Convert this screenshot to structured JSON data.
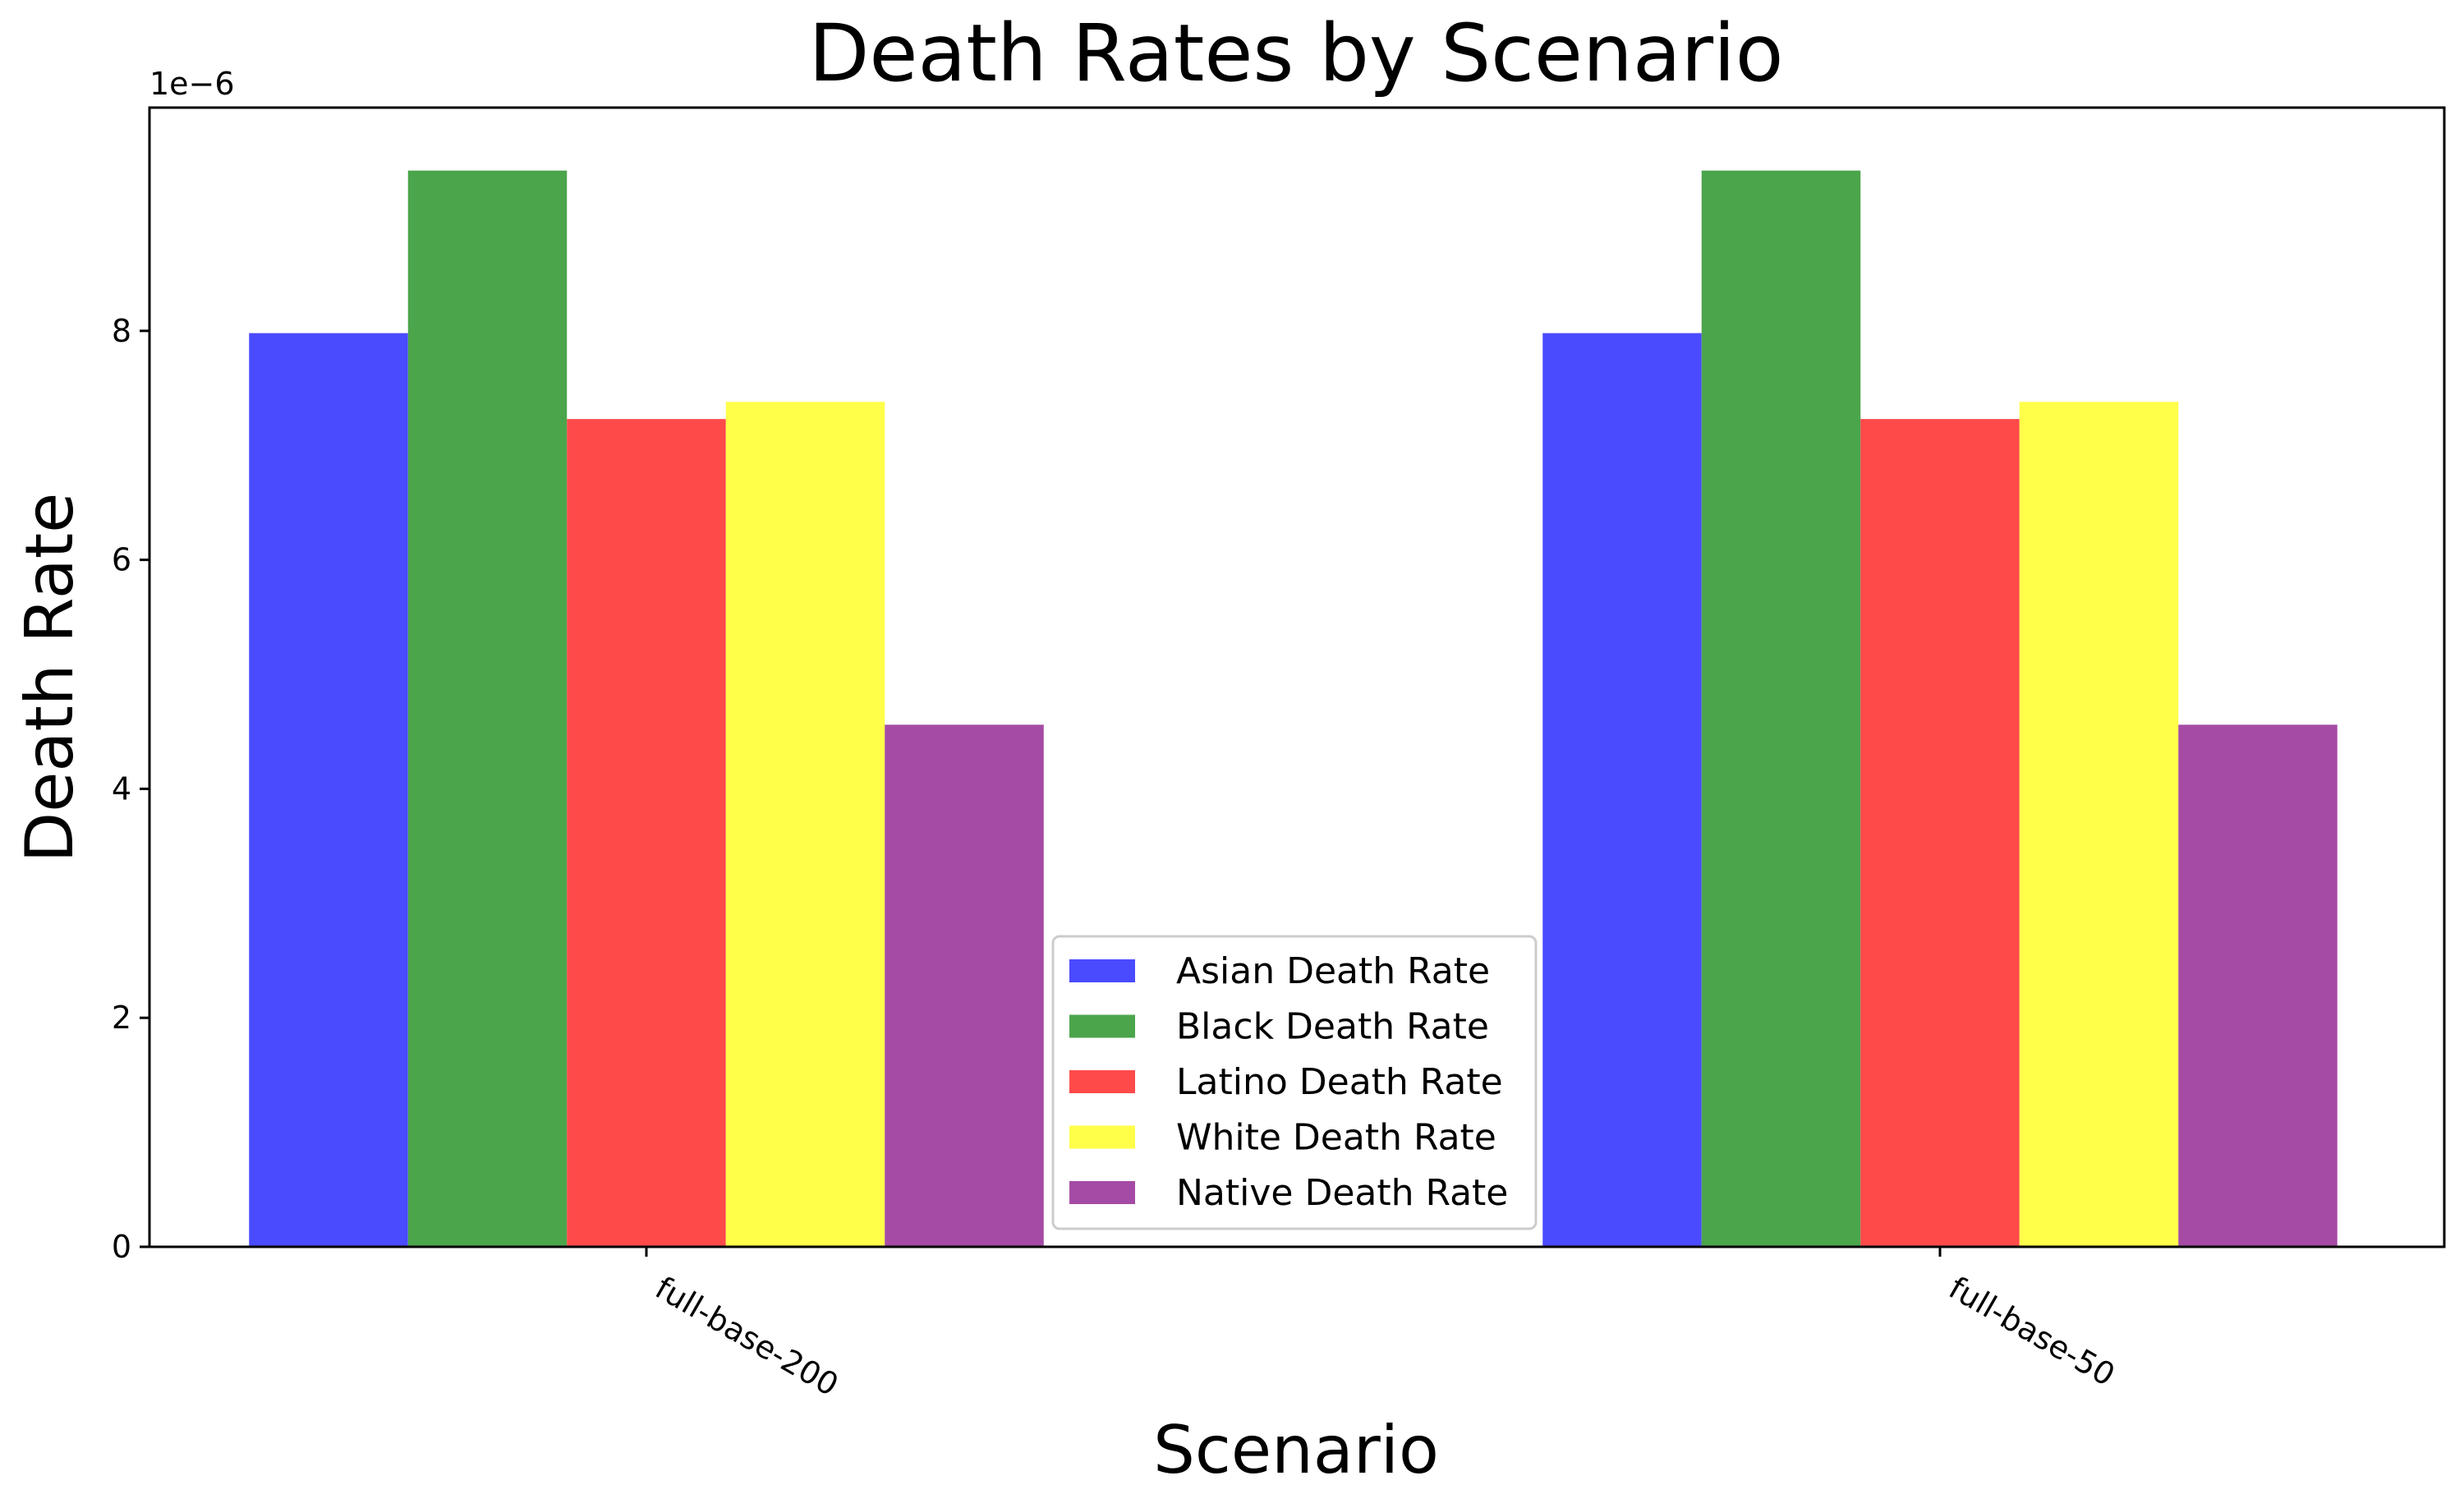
{
  "chart_data": {
    "type": "bar",
    "title": "Death Rates by Scenario",
    "xlabel": "Scenario",
    "ylabel": "Death Rate",
    "y_offset_label": "1e−6",
    "y_unit_multiplier": 1e-06,
    "ylim": [
      0,
      9.95
    ],
    "yticks": [
      0,
      2,
      4,
      6,
      8
    ],
    "categories": [
      "full-base-200",
      "full-base-50"
    ],
    "series": [
      {
        "name": "Asian Death Rate",
        "color": "#4a4aff",
        "values": [
          7.98,
          7.98
        ]
      },
      {
        "name": "Black Death Rate",
        "color": "#4ba54b",
        "values": [
          9.4,
          9.4
        ]
      },
      {
        "name": "Latino Death Rate",
        "color": "#ff4a4a",
        "values": [
          7.23,
          7.23
        ]
      },
      {
        "name": "White Death Rate",
        "color": "#ffff4a",
        "values": [
          7.38,
          7.38
        ]
      },
      {
        "name": "Native Death Rate",
        "color": "#a54ba5",
        "values": [
          4.56,
          4.56
        ]
      }
    ],
    "legend_position": "lower center",
    "grid": false
  }
}
